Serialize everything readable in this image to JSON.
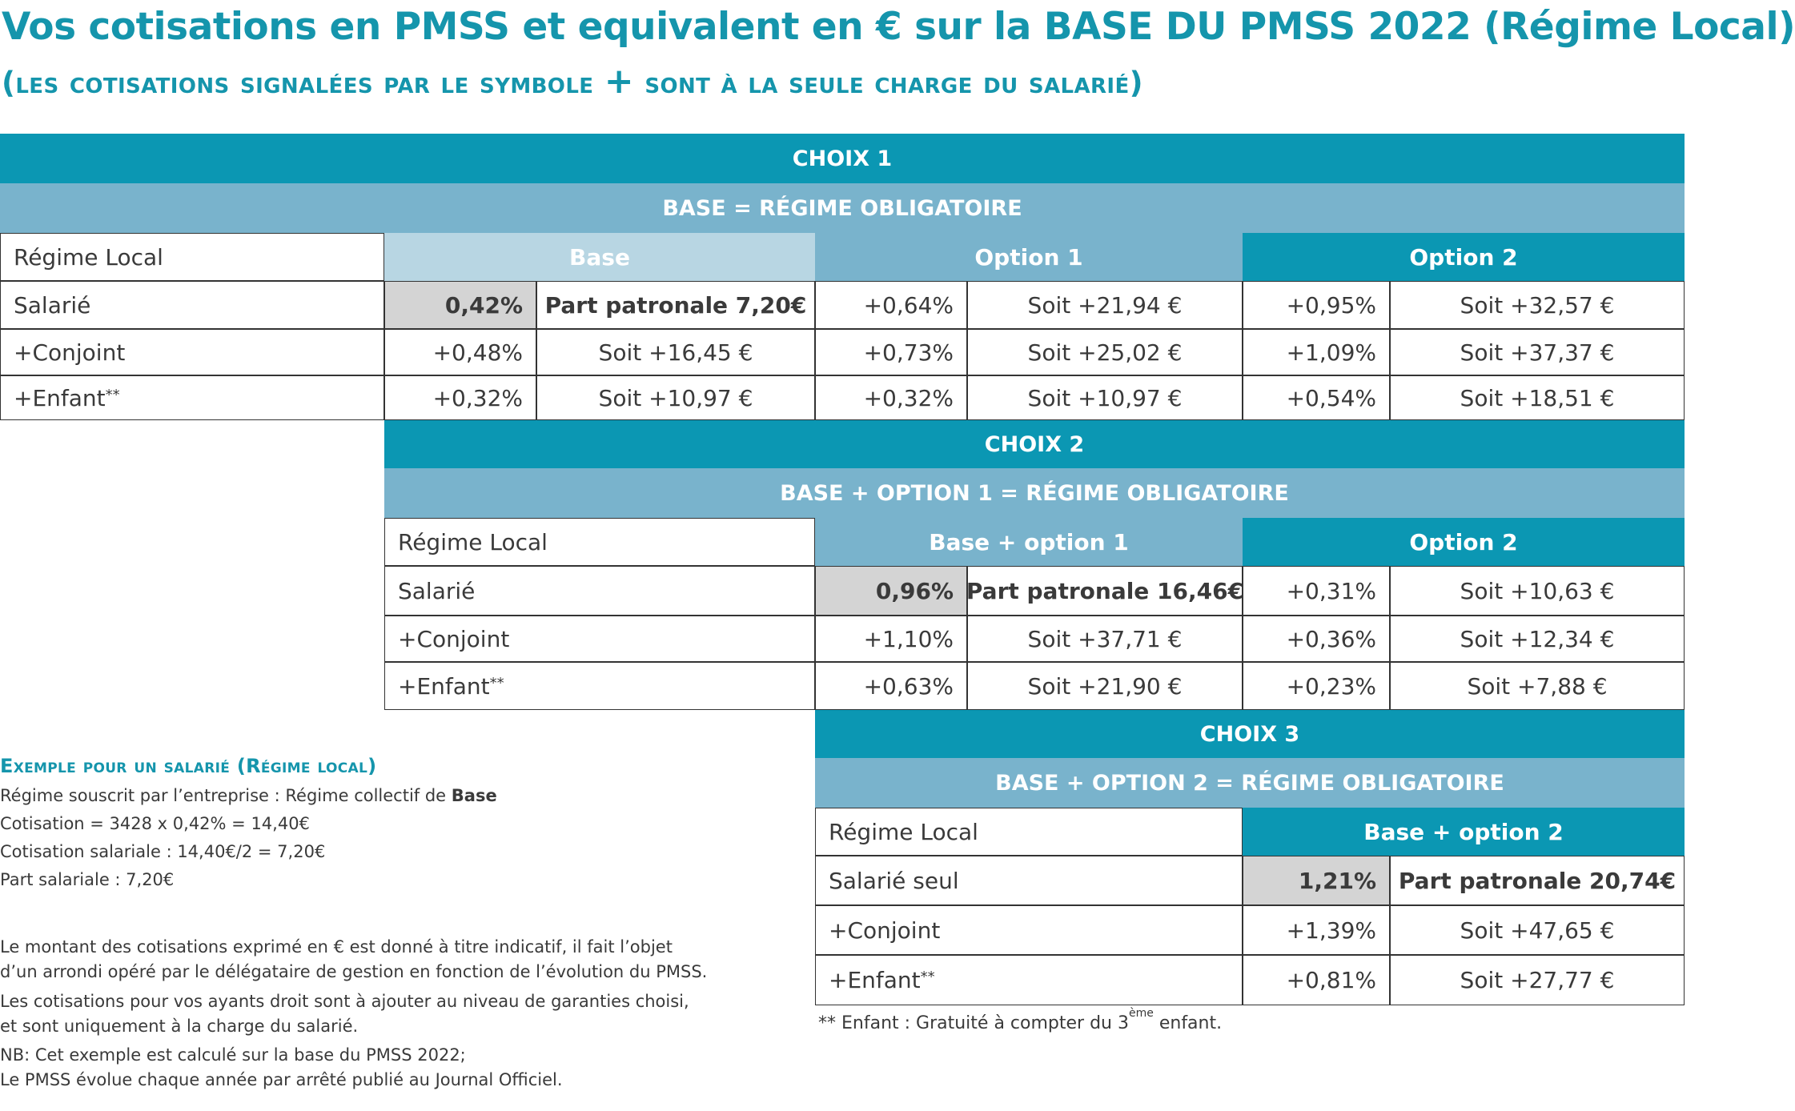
{
  "title": {
    "line1": "Vos cotisations en PMSS et equivalent en € sur la BASE DU PMSS 2022 (Régime Local)",
    "line2_open": "(",
    "line2_text": "les cotisations signalées par le symbole",
    "line2_plus": "+",
    "line2_text2": "sont à la seule charge du salarié",
    "line2_close": ")"
  },
  "choix1": {
    "header": "CHOIX 1",
    "subheader": "BASE = RÉGIME OBLIGATOIRE",
    "corner": "Régime Local",
    "col_base": "Base",
    "col_option1": "Option 1",
    "col_option2": "Option 2",
    "rows": [
      {
        "label": "Salarié",
        "base_pct": "0,42%",
        "base_eur": "Part patronale 7,20€",
        "opt1_pct": "+0,64%",
        "opt1_eur": "Soit +21,94 €",
        "opt2_pct": "+0,95%",
        "opt2_eur": "Soit +32,57 €"
      },
      {
        "label": "+Conjoint",
        "base_pct": "+0,48%",
        "base_eur": "Soit +16,45 €",
        "opt1_pct": "+0,73%",
        "opt1_eur": "Soit +25,02 €",
        "opt2_pct": "+1,09%",
        "opt2_eur": "Soit +37,37 €"
      },
      {
        "label": "+Enfant",
        "sup": "**",
        "base_pct": "+0,32%",
        "base_eur": "Soit +10,97 €",
        "opt1_pct": "+0,32%",
        "opt1_eur": "Soit +10,97 €",
        "opt2_pct": "+0,54%",
        "opt2_eur": "Soit +18,51 €"
      }
    ]
  },
  "choix2": {
    "header": "CHOIX 2",
    "subheader": "BASE + OPTION 1 = RÉGIME OBLIGATOIRE",
    "corner": "Régime Local",
    "col_base": "Base + option 1",
    "col_option2": "Option 2",
    "rows": [
      {
        "label": "Salarié",
        "base_pct": "0,96%",
        "base_eur": "Part patronale 16,46€",
        "opt2_pct": "+0,31%",
        "opt2_eur": "Soit +10,63 €"
      },
      {
        "label": "+Conjoint",
        "base_pct": "+1,10%",
        "base_eur": "Soit +37,71 €",
        "opt2_pct": "+0,36%",
        "opt2_eur": "Soit +12,34 €"
      },
      {
        "label": "+Enfant",
        "sup": "**",
        "base_pct": "+0,63%",
        "base_eur": "Soit +21,90 €",
        "opt2_pct": "+0,23%",
        "opt2_eur": "Soit +7,88 €"
      }
    ]
  },
  "choix3": {
    "header": "CHOIX 3",
    "subheader": "BASE + OPTION 2 = RÉGIME OBLIGATOIRE",
    "corner": "Régime Local",
    "col_base": "Base + option 2",
    "rows": [
      {
        "label": "Salarié seul",
        "base_pct": "1,21%",
        "base_eur": "Part patronale 20,74€"
      },
      {
        "label": "+Conjoint",
        "base_pct": "+1,39%",
        "base_eur": "Soit +47,65 €"
      },
      {
        "label": "+Enfant",
        "sup": "**",
        "base_pct": "+0,81%",
        "base_eur": "Soit +27,77 €"
      }
    ]
  },
  "example": {
    "title": "Exemple pour un salarié (Régime local)",
    "line1_prefix": "Régime souscrit par l’entreprise : Régime collectif de ",
    "line1_bold": "Base",
    "line2": "Cotisation = 3428 x 0,42% = 14,40€",
    "line3": "Cotisation salariale : 14,40€/2 = 7,20€",
    "line4": "Part salariale : 7,20€"
  },
  "notes": {
    "p1a": "Le montant des cotisations exprimé en € est donné à titre indicatif, il fait l’objet",
    "p1b": "d’un arrondi opéré par le délégataire de gestion en fonction de l’évolution du PMSS.",
    "p2a": "Les cotisations pour vos ayants droit sont à ajouter au niveau de garanties choisi,",
    "p2b": "et sont uniquement à la charge du salarié.",
    "p3a": "NB: Cet exemple est calculé sur la base du PMSS 2022;",
    "p3b": "Le PMSS évolue chaque année par arrêté publié au Journal Officiel."
  },
  "footnote": {
    "prefix": "** Enfant : Gratuité à compter du 3",
    "sup": "ème",
    "suffix": " enfant."
  }
}
